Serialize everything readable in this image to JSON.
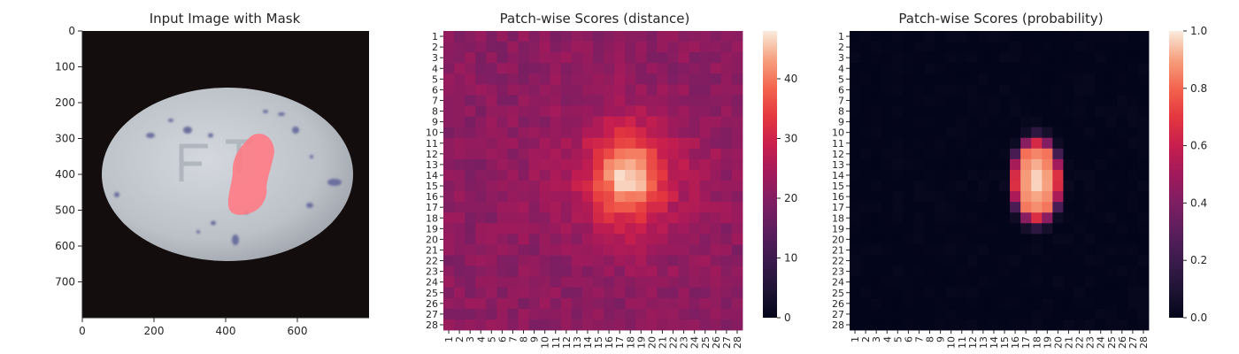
{
  "chart_data": [
    {
      "type": "image",
      "title": "Input Image with Mask",
      "xlim": [
        0,
        800
      ],
      "ylim": [
        800,
        0
      ],
      "x_ticks": [
        "0",
        "200",
        "400",
        "600"
      ],
      "y_ticks": [
        "0",
        "100",
        "200",
        "300",
        "400",
        "500",
        "600",
        "700"
      ],
      "colors": {
        "background": "#130d0d",
        "egg": "#bdc2c9",
        "mask": "#ff7b85",
        "speckle": "#6a6f9e"
      }
    },
    {
      "type": "heatmap",
      "title": "Patch-wise Scores (distance)",
      "rows": 28,
      "cols": 28,
      "colormap": "rocket",
      "vmin": 0,
      "vmax": 48,
      "colorbar_ticks": [
        "0",
        "10",
        "20",
        "30",
        "40"
      ],
      "x_ticks": [
        "1",
        "2",
        "3",
        "4",
        "5",
        "6",
        "7",
        "8",
        "9",
        "10",
        "11",
        "12",
        "13",
        "14",
        "15",
        "16",
        "17",
        "18",
        "19",
        "20",
        "21",
        "22",
        "23",
        "24",
        "25",
        "26",
        "27",
        "28"
      ],
      "y_ticks": [
        "1",
        "2",
        "3",
        "4",
        "5",
        "6",
        "7",
        "8",
        "9",
        "10",
        "11",
        "12",
        "13",
        "14",
        "15",
        "16",
        "17",
        "18",
        "19",
        "20",
        "21",
        "22",
        "23",
        "24",
        "25",
        "26",
        "27",
        "28"
      ],
      "background_level": 21,
      "hotspot_center": [
        17.8,
        14.2
      ],
      "hotspot_peak": 47
    },
    {
      "type": "heatmap",
      "title": "Patch-wise Scores (probability)",
      "rows": 28,
      "cols": 28,
      "colormap": "rocket",
      "vmin": 0,
      "vmax": 1.0,
      "colorbar_ticks": [
        "0.0",
        "0.2",
        "0.4",
        "0.6",
        "0.8",
        "1.0"
      ],
      "x_ticks": [
        "1",
        "2",
        "3",
        "4",
        "5",
        "6",
        "7",
        "8",
        "9",
        "10",
        "11",
        "12",
        "13",
        "14",
        "15",
        "16",
        "17",
        "18",
        "19",
        "20",
        "21",
        "22",
        "23",
        "24",
        "25",
        "26",
        "27",
        "28"
      ],
      "y_ticks": [
        "1",
        "2",
        "3",
        "4",
        "5",
        "6",
        "7",
        "8",
        "9",
        "10",
        "11",
        "12",
        "13",
        "14",
        "15",
        "16",
        "17",
        "18",
        "19",
        "20",
        "21",
        "22",
        "23",
        "24",
        "25",
        "26",
        "27",
        "28"
      ],
      "hotspot_center": [
        18,
        14.5
      ],
      "hotspot_peak": 1.0
    }
  ]
}
